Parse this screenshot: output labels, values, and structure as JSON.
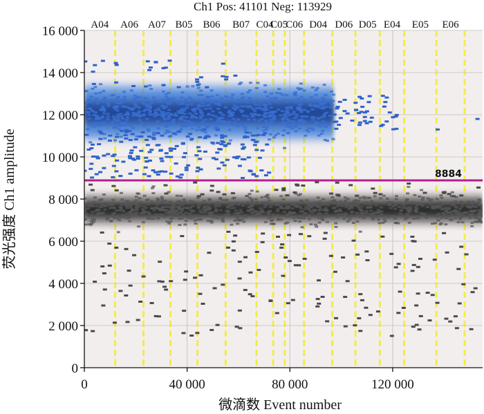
{
  "chart_data": {
    "type": "scatter",
    "title": "Ch1 Pos: 41101 Neg: 113929",
    "xlabel": "微滴数 Event number",
    "ylabel": "荧光强度 Ch1 amplitude",
    "xlim": [
      0,
      155000
    ],
    "ylim": [
      0,
      16000
    ],
    "x_ticks": [
      0,
      40000,
      80000,
      120000
    ],
    "x_tick_labels": [
      "0",
      "40 000",
      "80 000",
      "120 000"
    ],
    "y_ticks": [
      0,
      2000,
      4000,
      6000,
      8000,
      10000,
      12000,
      14000,
      16000
    ],
    "y_tick_labels": [
      "0",
      "2 000",
      "4 000",
      "6 000",
      "8 000",
      "10 000",
      "12 000",
      "14 000",
      "16 000"
    ],
    "grid": true,
    "threshold": {
      "value": 8884,
      "label": "8884",
      "color": "#b0208f"
    },
    "wells": [
      {
        "label": "A04",
        "boundary": 12000
      },
      {
        "label": "A06",
        "boundary": 23000
      },
      {
        "label": "A07",
        "boundary": 33500
      },
      {
        "label": "B05",
        "boundary": 44000
      },
      {
        "label": "B06",
        "boundary": 55000
      },
      {
        "label": "B07",
        "boundary": 67000
      },
      {
        "label": "C04",
        "boundary": 73500
      },
      {
        "label": "C05",
        "boundary": 78000
      },
      {
        "label": "C06",
        "boundary": 85500
      },
      {
        "label": "D04",
        "boundary": 96500
      },
      {
        "label": "D06",
        "boundary": 105500
      },
      {
        "label": "D05",
        "boundary": 115000
      },
      {
        "label": "E04",
        "boundary": 124500
      },
      {
        "label": "E05",
        "boundary": 137000
      },
      {
        "label": "E06",
        "boundary": 148000
      }
    ],
    "series": [
      {
        "name": "Positive",
        "color": "#2f63c8",
        "band": {
          "center": 12100,
          "spread": 650
        },
        "x_extent": [
          0,
          97000
        ],
        "sparse_x_extent": [
          97000,
          155000
        ]
      },
      {
        "name": "Negative",
        "color": "#2a2a2a",
        "band": {
          "center": 7500,
          "spread": 420
        },
        "x_extent": [
          0,
          155000
        ]
      }
    ]
  }
}
